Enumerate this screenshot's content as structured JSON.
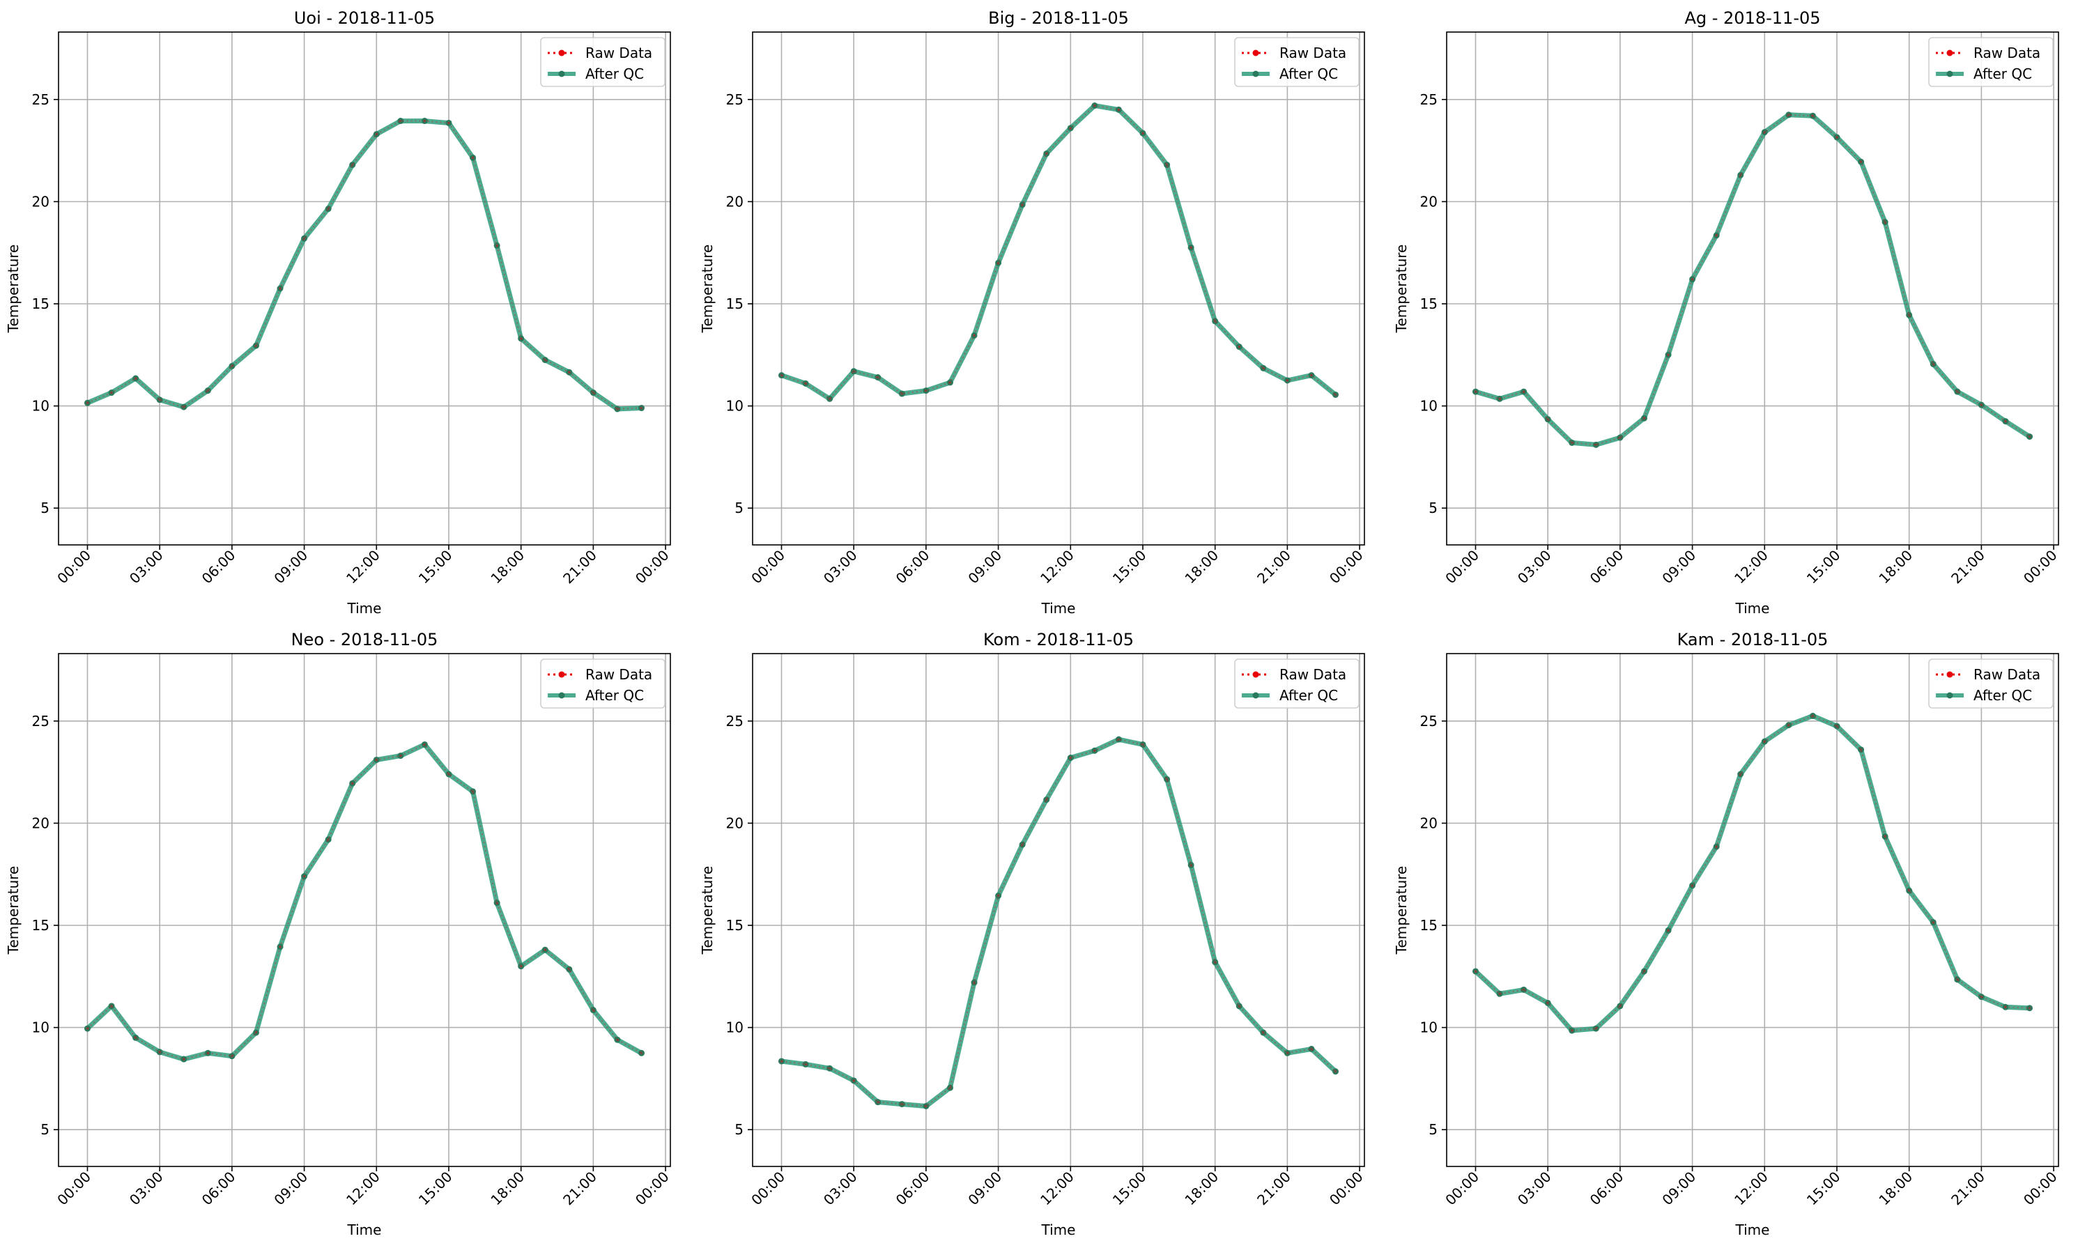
{
  "colors": {
    "raw": "#e8000b",
    "after_qc": "#2e9c7d",
    "after_qc_marker": "#2a7a5e",
    "grid": "#b0b0b0",
    "axis": "#000000"
  },
  "legend": {
    "raw_label": "Raw Data",
    "qc_label": "After QC",
    "placement": "upper-right"
  },
  "chart_data": [
    {
      "type": "line",
      "title": "Uoi - 2018-11-05",
      "xlabel": "Time",
      "ylabel": "Temperature",
      "x": [
        "00:00",
        "01:00",
        "02:00",
        "03:00",
        "04:00",
        "05:00",
        "06:00",
        "07:00",
        "08:00",
        "09:00",
        "10:00",
        "11:00",
        "12:00",
        "13:00",
        "14:00",
        "15:00",
        "16:00",
        "17:00",
        "18:00",
        "19:00",
        "20:00",
        "21:00",
        "22:00",
        "23:00"
      ],
      "xticks": [
        "00:00",
        "03:00",
        "06:00",
        "09:00",
        "12:00",
        "15:00",
        "18:00",
        "21:00",
        "00:00"
      ],
      "yticks": [
        5,
        10,
        15,
        20,
        25
      ],
      "xlim_hours": [
        -1.2,
        24.2
      ],
      "ylim": [
        3.2,
        28.3
      ],
      "grid": true,
      "series": [
        {
          "name": "Raw Data",
          "values": [
            10.15,
            10.65,
            11.35,
            10.3,
            9.95,
            10.75,
            11.95,
            12.95,
            15.75,
            18.2,
            19.65,
            21.8,
            23.3,
            23.95,
            23.95,
            23.85,
            22.15,
            17.85,
            13.3,
            12.25,
            11.65,
            10.65,
            9.85,
            9.9
          ]
        },
        {
          "name": "After QC",
          "values": [
            10.15,
            10.65,
            11.35,
            10.3,
            9.95,
            10.75,
            11.95,
            12.95,
            15.75,
            18.2,
            19.65,
            21.8,
            23.3,
            23.95,
            23.95,
            23.85,
            22.15,
            17.85,
            13.3,
            12.25,
            11.65,
            10.65,
            9.85,
            9.9
          ]
        }
      ]
    },
    {
      "type": "line",
      "title": "Big - 2018-11-05",
      "xlabel": "Time",
      "ylabel": "Temperature",
      "x": [
        "00:00",
        "01:00",
        "02:00",
        "03:00",
        "04:00",
        "05:00",
        "06:00",
        "07:00",
        "08:00",
        "09:00",
        "10:00",
        "11:00",
        "12:00",
        "13:00",
        "14:00",
        "15:00",
        "16:00",
        "17:00",
        "18:00",
        "19:00",
        "20:00",
        "21:00",
        "22:00",
        "23:00"
      ],
      "xticks": [
        "00:00",
        "03:00",
        "06:00",
        "09:00",
        "12:00",
        "15:00",
        "18:00",
        "21:00",
        "00:00"
      ],
      "yticks": [
        5,
        10,
        15,
        20,
        25
      ],
      "xlim_hours": [
        -1.2,
        24.2
      ],
      "ylim": [
        3.2,
        28.3
      ],
      "grid": true,
      "series": [
        {
          "name": "Raw Data",
          "values": [
            11.5,
            11.1,
            10.35,
            11.7,
            11.4,
            10.6,
            10.75,
            11.15,
            13.45,
            17.0,
            19.85,
            22.35,
            23.6,
            24.7,
            24.5,
            23.35,
            21.8,
            17.75,
            14.15,
            12.9,
            11.85,
            11.25,
            11.5,
            10.55
          ]
        },
        {
          "name": "After QC",
          "values": [
            11.5,
            11.1,
            10.35,
            11.7,
            11.4,
            10.6,
            10.75,
            11.15,
            13.45,
            17.0,
            19.85,
            22.35,
            23.6,
            24.7,
            24.5,
            23.35,
            21.8,
            17.75,
            14.15,
            12.9,
            11.85,
            11.25,
            11.5,
            10.55
          ]
        }
      ]
    },
    {
      "type": "line",
      "title": "Ag - 2018-11-05",
      "xlabel": "Time",
      "ylabel": "Temperature",
      "x": [
        "00:00",
        "01:00",
        "02:00",
        "03:00",
        "04:00",
        "05:00",
        "06:00",
        "07:00",
        "08:00",
        "09:00",
        "10:00",
        "11:00",
        "12:00",
        "13:00",
        "14:00",
        "15:00",
        "16:00",
        "17:00",
        "18:00",
        "19:00",
        "20:00",
        "21:00",
        "22:00",
        "23:00"
      ],
      "xticks": [
        "00:00",
        "03:00",
        "06:00",
        "09:00",
        "12:00",
        "15:00",
        "18:00",
        "21:00",
        "00:00"
      ],
      "yticks": [
        5,
        10,
        15,
        20,
        25
      ],
      "xlim_hours": [
        -1.2,
        24.2
      ],
      "ylim": [
        3.2,
        28.3
      ],
      "grid": true,
      "series": [
        {
          "name": "Raw Data",
          "values": [
            10.7,
            10.35,
            10.7,
            9.35,
            8.2,
            8.1,
            8.45,
            9.4,
            12.5,
            16.2,
            18.35,
            21.3,
            23.4,
            24.25,
            24.2,
            23.15,
            21.95,
            19.0,
            14.45,
            12.05,
            10.7,
            10.05,
            9.25,
            8.5
          ]
        },
        {
          "name": "After QC",
          "values": [
            10.7,
            10.35,
            10.7,
            9.35,
            8.2,
            8.1,
            8.45,
            9.4,
            12.5,
            16.2,
            18.35,
            21.3,
            23.4,
            24.25,
            24.2,
            23.15,
            21.95,
            19.0,
            14.45,
            12.05,
            10.7,
            10.05,
            9.25,
            8.5
          ]
        }
      ]
    },
    {
      "type": "line",
      "title": "Neo - 2018-11-05",
      "xlabel": "Time",
      "ylabel": "Temperature",
      "x": [
        "00:00",
        "01:00",
        "02:00",
        "03:00",
        "04:00",
        "05:00",
        "06:00",
        "07:00",
        "08:00",
        "09:00",
        "10:00",
        "11:00",
        "12:00",
        "13:00",
        "14:00",
        "15:00",
        "16:00",
        "17:00",
        "18:00",
        "19:00",
        "20:00",
        "21:00",
        "22:00",
        "23:00"
      ],
      "xticks": [
        "00:00",
        "03:00",
        "06:00",
        "09:00",
        "12:00",
        "15:00",
        "18:00",
        "21:00",
        "00:00"
      ],
      "yticks": [
        5,
        10,
        15,
        20,
        25
      ],
      "xlim_hours": [
        -1.2,
        24.2
      ],
      "ylim": [
        3.2,
        28.3
      ],
      "grid": true,
      "series": [
        {
          "name": "Raw Data",
          "values": [
            9.95,
            11.05,
            9.5,
            8.8,
            8.45,
            8.75,
            8.6,
            9.75,
            13.95,
            17.4,
            19.2,
            21.95,
            23.1,
            23.3,
            23.85,
            22.4,
            21.55,
            16.1,
            13.0,
            13.8,
            12.85,
            10.85,
            9.4,
            8.75
          ]
        },
        {
          "name": "After QC",
          "values": [
            9.95,
            11.05,
            9.5,
            8.8,
            8.45,
            8.75,
            8.6,
            9.75,
            13.95,
            17.4,
            19.2,
            21.95,
            23.1,
            23.3,
            23.85,
            22.4,
            21.55,
            16.1,
            13.0,
            13.8,
            12.85,
            10.85,
            9.4,
            8.75
          ]
        }
      ]
    },
    {
      "type": "line",
      "title": "Kom - 2018-11-05",
      "xlabel": "Time",
      "ylabel": "Temperature",
      "x": [
        "00:00",
        "01:00",
        "02:00",
        "03:00",
        "04:00",
        "05:00",
        "06:00",
        "07:00",
        "08:00",
        "09:00",
        "10:00",
        "11:00",
        "12:00",
        "13:00",
        "14:00",
        "15:00",
        "16:00",
        "17:00",
        "18:00",
        "19:00",
        "20:00",
        "21:00",
        "22:00",
        "23:00"
      ],
      "xticks": [
        "00:00",
        "03:00",
        "06:00",
        "09:00",
        "12:00",
        "15:00",
        "18:00",
        "21:00",
        "00:00"
      ],
      "yticks": [
        5,
        10,
        15,
        20,
        25
      ],
      "xlim_hours": [
        -1.2,
        24.2
      ],
      "ylim": [
        3.2,
        28.3
      ],
      "grid": true,
      "series": [
        {
          "name": "Raw Data",
          "values": [
            8.35,
            8.2,
            8.0,
            7.4,
            6.35,
            6.25,
            6.15,
            7.05,
            12.2,
            16.45,
            18.95,
            21.15,
            23.2,
            23.55,
            24.1,
            23.85,
            22.15,
            17.95,
            13.2,
            11.05,
            9.75,
            8.75,
            8.95,
            7.85
          ]
        },
        {
          "name": "After QC",
          "values": [
            8.35,
            8.2,
            8.0,
            7.4,
            6.35,
            6.25,
            6.15,
            7.05,
            12.2,
            16.45,
            18.95,
            21.15,
            23.2,
            23.55,
            24.1,
            23.85,
            22.15,
            17.95,
            13.2,
            11.05,
            9.75,
            8.75,
            8.95,
            7.85
          ]
        }
      ]
    },
    {
      "type": "line",
      "title": "Kam - 2018-11-05",
      "xlabel": "Time",
      "ylabel": "Temperature",
      "x": [
        "00:00",
        "01:00",
        "02:00",
        "03:00",
        "04:00",
        "05:00",
        "06:00",
        "07:00",
        "08:00",
        "09:00",
        "10:00",
        "11:00",
        "12:00",
        "13:00",
        "14:00",
        "15:00",
        "16:00",
        "17:00",
        "18:00",
        "19:00",
        "20:00",
        "21:00",
        "22:00",
        "23:00"
      ],
      "xticks": [
        "00:00",
        "03:00",
        "06:00",
        "09:00",
        "12:00",
        "15:00",
        "18:00",
        "21:00",
        "00:00"
      ],
      "yticks": [
        5,
        10,
        15,
        20,
        25
      ],
      "xlim_hours": [
        -1.2,
        24.2
      ],
      "ylim": [
        3.2,
        28.3
      ],
      "grid": true,
      "series": [
        {
          "name": "Raw Data",
          "values": [
            12.75,
            11.65,
            11.85,
            11.2,
            9.85,
            9.95,
            11.05,
            12.75,
            14.75,
            16.95,
            18.85,
            22.4,
            24.0,
            24.8,
            25.25,
            24.75,
            23.6,
            19.35,
            16.7,
            15.15,
            12.35,
            11.5,
            11.0,
            10.95
          ]
        },
        {
          "name": "After QC",
          "values": [
            12.75,
            11.65,
            11.85,
            11.2,
            9.85,
            9.95,
            11.05,
            12.75,
            14.75,
            16.95,
            18.85,
            22.4,
            24.0,
            24.8,
            25.25,
            24.75,
            23.6,
            19.35,
            16.7,
            15.15,
            12.35,
            11.5,
            11.0,
            10.95
          ]
        }
      ]
    }
  ]
}
